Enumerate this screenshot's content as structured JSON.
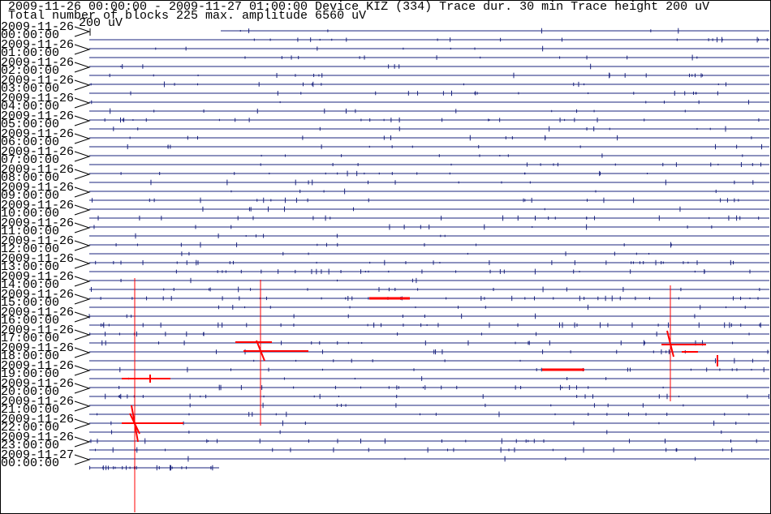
{
  "header": {
    "line1": "2009-11-26 00:00:00 - 2009-11-27 01:00:00  Device  KIZ (334)  Trace dur. 30 min  Trace height 200 uV",
    "line2": "Total number of blocks 225 max. amplitude 6560 uV",
    "scale": "200 uV"
  },
  "rows": [
    {
      "date": "2009-11-26",
      "time": "00:00:00"
    },
    {
      "date": "2009-11-26",
      "time": "01:00:00"
    },
    {
      "date": "2009-11-26",
      "time": "02:00:00"
    },
    {
      "date": "2009-11-26",
      "time": "03:00:00"
    },
    {
      "date": "2009-11-26",
      "time": "04:00:00"
    },
    {
      "date": "2009-11-26",
      "time": "05:00:00"
    },
    {
      "date": "2009-11-26",
      "time": "06:00:00"
    },
    {
      "date": "2009-11-26",
      "time": "07:00:00"
    },
    {
      "date": "2009-11-26",
      "time": "08:00:00"
    },
    {
      "date": "2009-11-26",
      "time": "09:00:00"
    },
    {
      "date": "2009-11-26",
      "time": "10:00:00"
    },
    {
      "date": "2009-11-26",
      "time": "11:00:00"
    },
    {
      "date": "2009-11-26",
      "time": "12:00:00"
    },
    {
      "date": "2009-11-26",
      "time": "13:00:00"
    },
    {
      "date": "2009-11-26",
      "time": "14:00:00"
    },
    {
      "date": "2009-11-26",
      "time": "15:00:00"
    },
    {
      "date": "2009-11-26",
      "time": "16:00:00"
    },
    {
      "date": "2009-11-26",
      "time": "17:00:00"
    },
    {
      "date": "2009-11-26",
      "time": "18:00:00"
    },
    {
      "date": "2009-11-26",
      "time": "19:00:00"
    },
    {
      "date": "2009-11-26",
      "time": "20:00:00"
    },
    {
      "date": "2009-11-26",
      "time": "21:00:00"
    },
    {
      "date": "2009-11-26",
      "time": "22:00:00"
    },
    {
      "date": "2009-11-26",
      "time": "23:00:00"
    },
    {
      "date": "2009-11-27",
      "time": "00:00:00"
    }
  ]
}
